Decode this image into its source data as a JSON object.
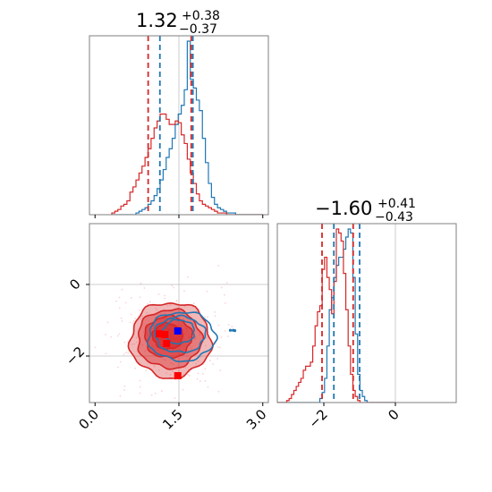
{
  "chart_data": {
    "type": "corner",
    "colors": {
      "blue": "#1f77b4",
      "red": "#d62728",
      "grid": "#cccccc",
      "frame": "#7f7f7f"
    },
    "parameters": [
      {
        "title_value": "1.32",
        "title_plus": "+0.38",
        "title_minus": "−0.37",
        "range": [
          -0.1,
          3.1
        ],
        "ticks": [
          0.0,
          1.5,
          3.0
        ],
        "tick_labels": [
          "0.0",
          "1.5",
          "3.0"
        ],
        "truth": 1.5
      },
      {
        "title_value": "−1.60",
        "title_plus": "+0.41",
        "title_minus": "−0.43",
        "range": [
          -3.3,
          1.7
        ],
        "ticks": [
          -2,
          0
        ],
        "tick_labels": [
          "−2",
          "0"
        ],
        "truth": 0
      }
    ],
    "histograms": [
      {
        "param": 0,
        "bins": [
          0.3,
          3.0,
          50
        ],
        "series": [
          {
            "name": "blue",
            "color": "#1f77b4",
            "counts": [
              0,
              0,
              0,
              0,
              0,
              0,
              0,
              0,
              1,
              2,
              3,
              4,
              6,
              8,
              11,
              15,
              20,
              26,
              33,
              38,
              44,
              52,
              58,
              63,
              72,
              100,
              78,
              73,
              66,
              60,
              44,
              30,
              18,
              10,
              6,
              4,
              3,
              2,
              1,
              1,
              1,
              0,
              0,
              0,
              0,
              0,
              0,
              0,
              0,
              0
            ],
            "quantiles": [
              1.16,
              1.75
            ]
          },
          {
            "name": "red",
            "color": "#d62728",
            "counts": [
              1,
              2,
              3,
              5,
              6,
              8,
              13,
              16,
              20,
              24,
              28,
              33,
              38,
              44,
              50,
              54,
              58,
              58,
              55,
              52,
              52,
              54,
              53,
              46,
              41,
              32,
              24,
              18,
              12,
              8,
              6,
              5,
              4,
              3,
              2,
              1,
              1,
              1,
              0,
              0,
              0,
              0,
              0,
              0,
              0,
              0,
              0,
              0,
              0,
              0
            ],
            "quantiles": [
              0.95,
              1.72
            ]
          }
        ]
      },
      {
        "param": 1,
        "bins": [
          -3.3,
          0.0,
          50
        ],
        "series": [
          {
            "name": "blue",
            "color": "#1f77b4",
            "counts": [
              0,
              0,
              0,
              0,
              0,
              0,
              0,
              0,
              0,
              0,
              0,
              0,
              0,
              0,
              0,
              0,
              0,
              0,
              2,
              5,
              12,
              28,
              46,
              52,
              62,
              68,
              72,
              72,
              76,
              82,
              86,
              84,
              62,
              34,
              14,
              6,
              3,
              1,
              0,
              0,
              0,
              0,
              0,
              0,
              0,
              0,
              0,
              0,
              0,
              0
            ],
            "quantiles": [
              -1.72,
              -1.0
            ]
          },
          {
            "name": "red",
            "color": "#d62728",
            "counts": [
              0,
              0,
              0,
              0,
              1,
              2,
              4,
              6,
              8,
              10,
              12,
              16,
              18,
              18,
              20,
              28,
              38,
              45,
              48,
              66,
              72,
              62,
              56,
              44,
              60,
              86,
              84,
              80,
              64,
              46,
              28,
              14,
              6,
              3,
              1,
              0,
              0,
              0,
              0,
              0,
              0,
              0,
              0,
              0,
              0,
              0,
              0,
              0,
              0,
              0
            ],
            "quantiles": [
              -2.05,
              -1.18
            ]
          }
        ]
      }
    ],
    "scatter2d": {
      "x_param": 0,
      "y_param": 1,
      "point_cloud_color": "#f5b7bb",
      "red_contours": [
        {
          "center": [
            1.35,
            -1.55
          ],
          "radii": [
            0.72,
            1.05
          ],
          "alpha": 0.55
        },
        {
          "center": [
            1.33,
            -1.52
          ],
          "radii": [
            0.57,
            0.82
          ],
          "alpha": 0.7
        },
        {
          "center": [
            1.31,
            -1.47
          ],
          "radii": [
            0.42,
            0.58
          ],
          "alpha": 0.85
        },
        {
          "center": [
            1.3,
            -1.45
          ],
          "radii": [
            0.27,
            0.36
          ],
          "alpha": 1.0
        }
      ],
      "blue_contours": [
        {
          "center": [
            1.55,
            -1.45
          ],
          "radii": [
            0.6,
            0.68
          ]
        },
        {
          "center": [
            1.52,
            -1.4
          ],
          "radii": [
            0.45,
            0.5
          ]
        },
        {
          "center": [
            1.5,
            -1.32
          ],
          "radii": [
            0.28,
            0.33
          ]
        }
      ],
      "blue_far_points": [
        [
          2.42,
          -1.28
        ],
        [
          2.47,
          -1.28
        ],
        [
          2.5,
          -1.29
        ]
      ],
      "red_markers": [
        [
          1.15,
          -1.38
        ],
        [
          1.28,
          -1.65
        ],
        [
          1.25,
          -1.4
        ],
        [
          1.48,
          -2.55
        ]
      ],
      "blue_markers": [
        [
          1.48,
          -1.3
        ]
      ]
    }
  }
}
